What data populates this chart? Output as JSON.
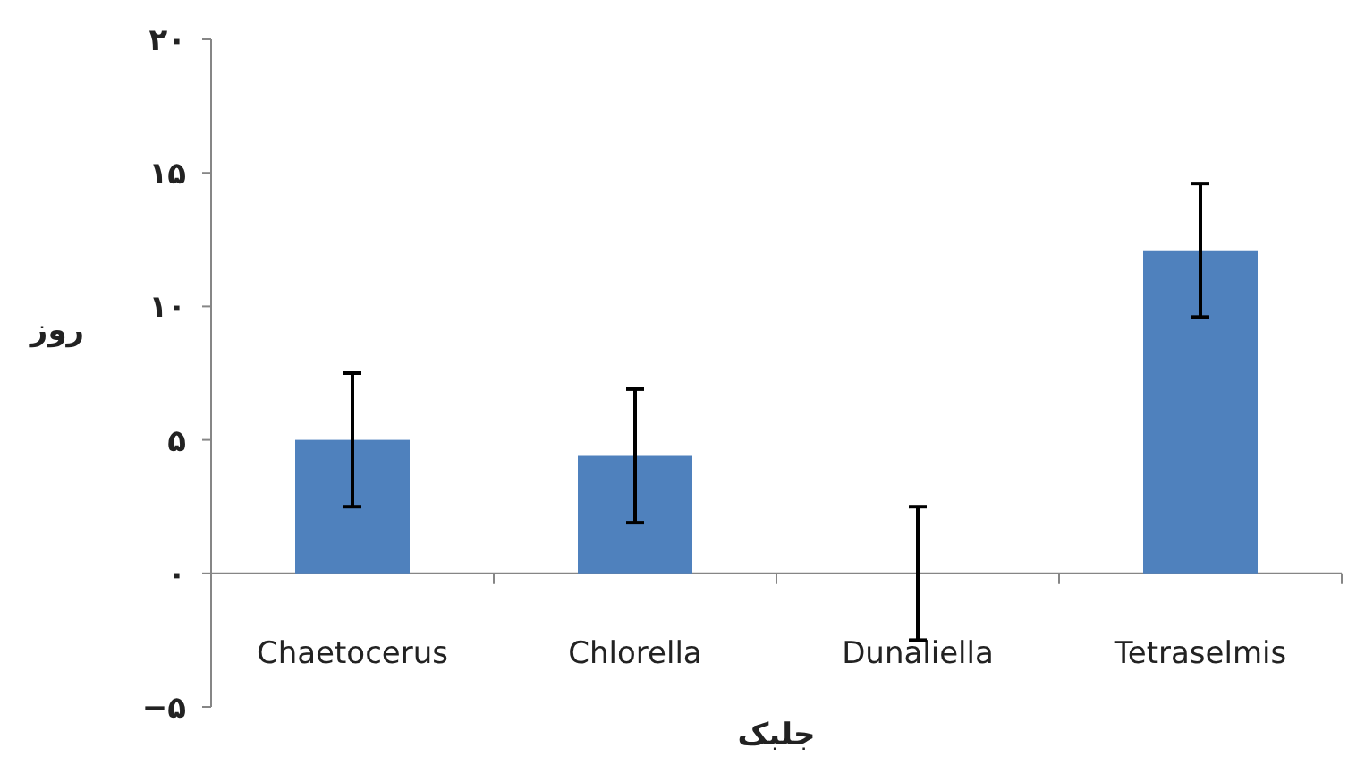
{
  "chart_data": {
    "type": "bar",
    "xlabel": "جلبک",
    "ylabel": "روز",
    "categories": [
      "Chaetocerus",
      "Chlorella",
      "Dunaliella",
      "Tetraselmis"
    ],
    "values": [
      5.0,
      4.4,
      0,
      12.1
    ],
    "errors": [
      2.5,
      2.5,
      2.5,
      2.5
    ],
    "color": "#4f81bd",
    "ylim": [
      -5,
      20
    ],
    "yticks": [
      {
        "value": -5,
        "label": "−۵"
      },
      {
        "value": 0,
        "label": "۰"
      },
      {
        "value": 5,
        "label": "۵"
      },
      {
        "value": 10,
        "label": "۱۰"
      },
      {
        "value": 15,
        "label": "۱۵"
      },
      {
        "value": 20,
        "label": "۲۰"
      }
    ],
    "grid": false
  }
}
